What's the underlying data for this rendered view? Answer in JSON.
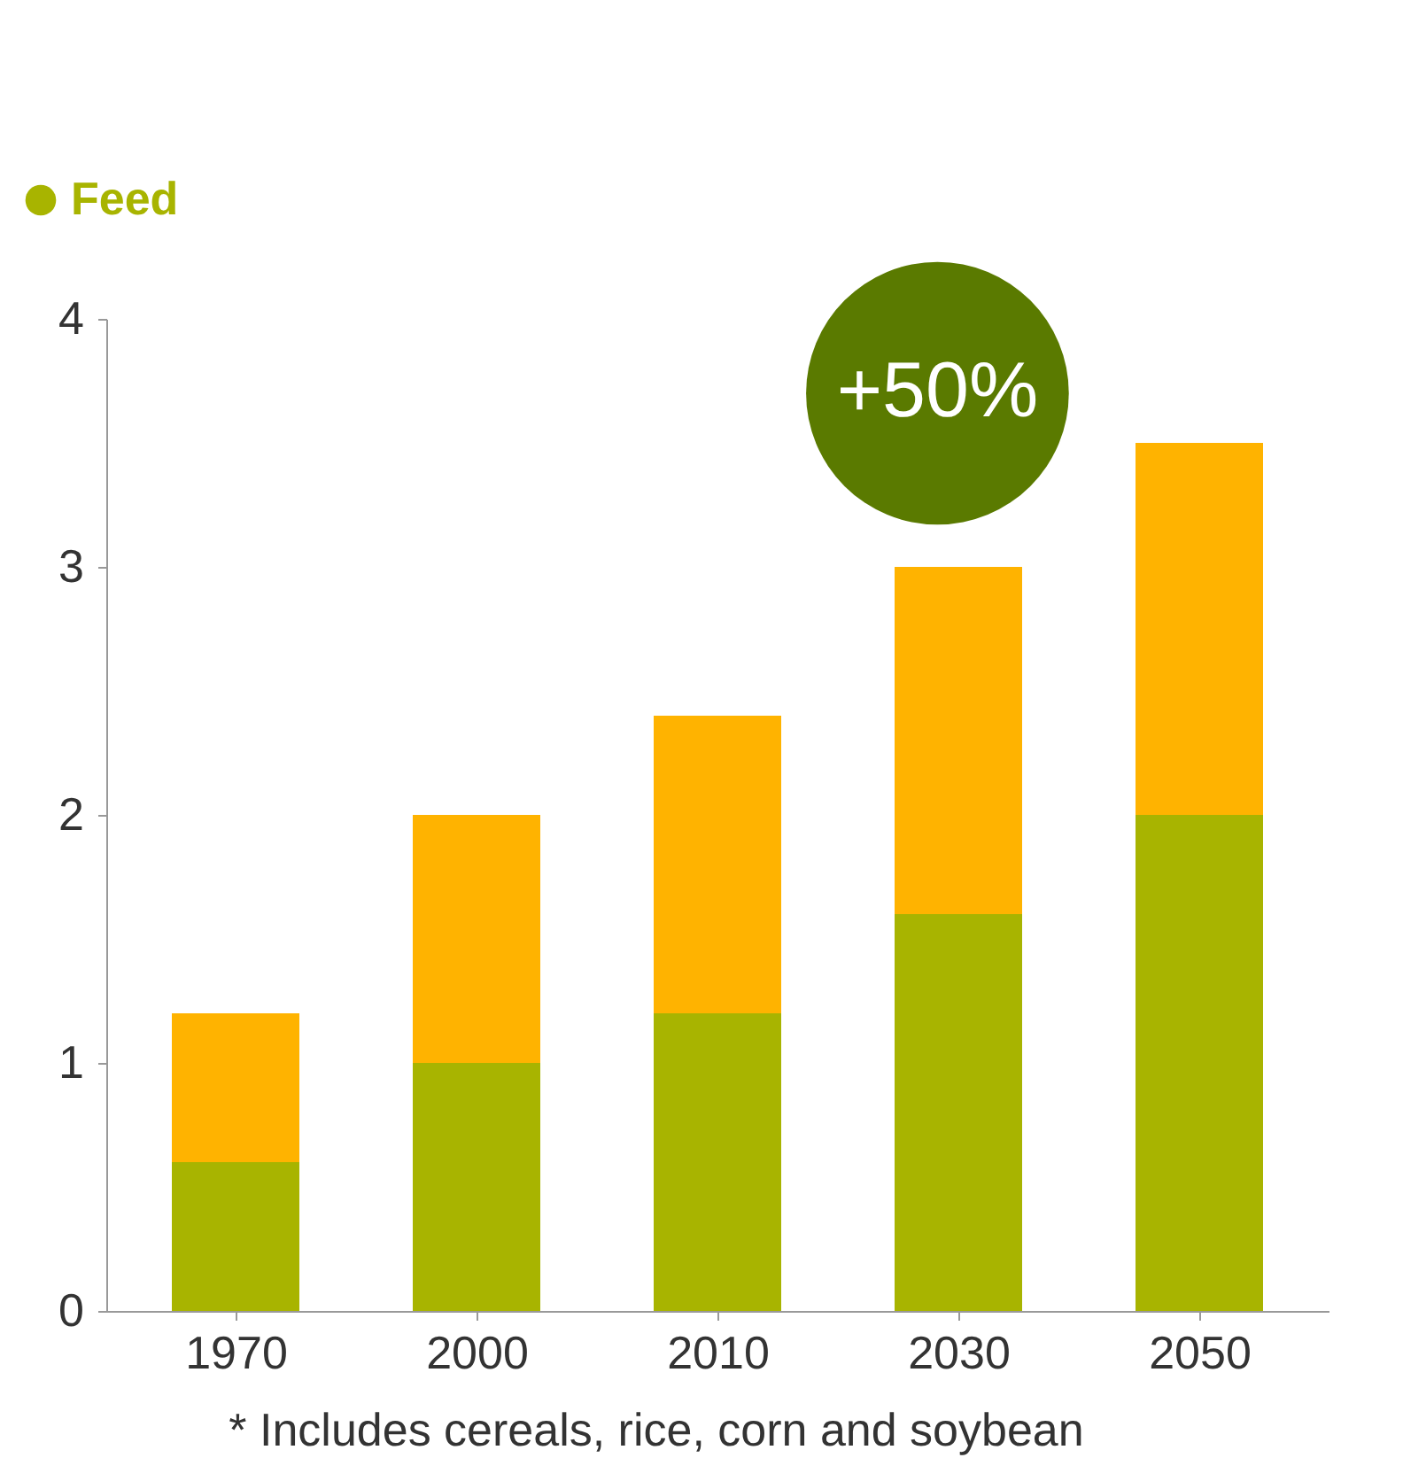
{
  "chart_data": {
    "type": "bar",
    "stacked": true,
    "categories": [
      "1970",
      "2000",
      "2010",
      "2030",
      "2050"
    ],
    "series": [
      {
        "name": "Feed",
        "color": "#a8b400",
        "values": [
          0.6,
          1.0,
          1.2,
          1.6,
          2.0
        ]
      },
      {
        "color": "#ffb300",
        "values": [
          0.6,
          1.0,
          1.2,
          1.4,
          1.5
        ]
      }
    ],
    "ylim": [
      0,
      4
    ],
    "yticks": [
      0,
      1,
      2,
      3,
      4
    ],
    "grid": false,
    "legend": "top left",
    "annotations": [
      "+50%",
      "*  Includes cereals, rice, corn and soybean"
    ]
  }
}
